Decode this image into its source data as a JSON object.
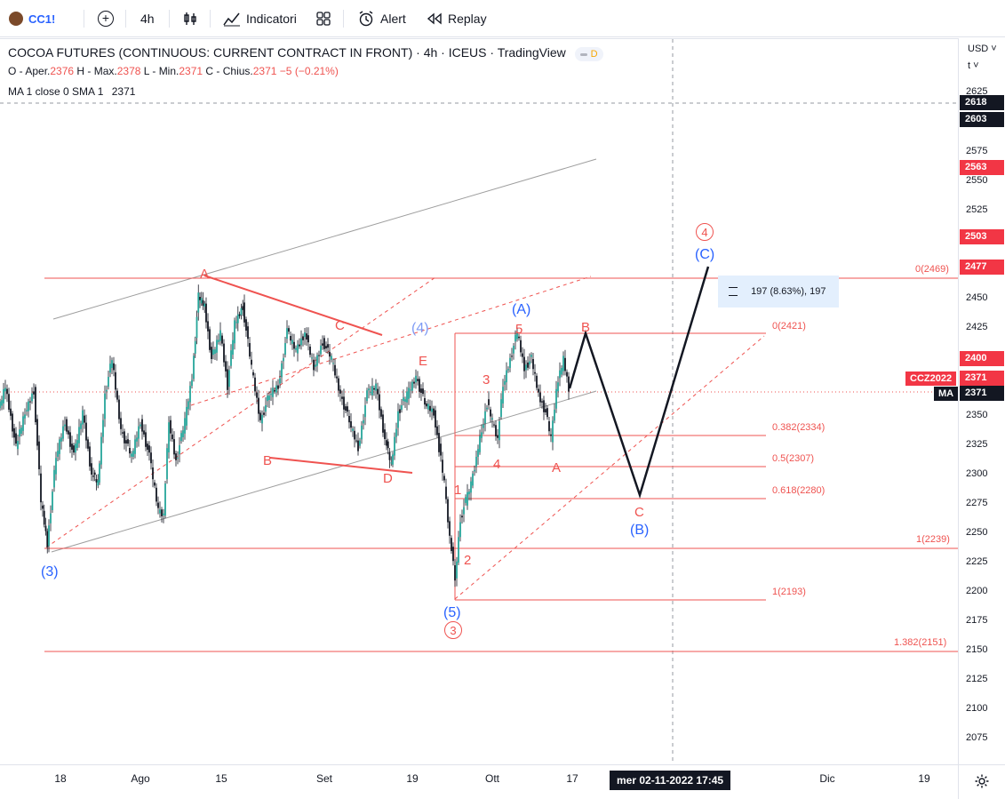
{
  "toolbar": {
    "symbol": "CC1!",
    "interval": "4h",
    "indicators_label": "Indicatori",
    "alert_label": "Alert",
    "replay_label": "Replay"
  },
  "legend": {
    "title": "COCOA FUTURES (CONTINUOUS: CURRENT CONTRACT IN FRONT) · 4h · ICEUS · TradingView",
    "badge": "D",
    "open_label": "O - Aper.",
    "open": "2376",
    "high_label": "H - Max.",
    "high": "2378",
    "low_label": "L - Min.",
    "low": "2371",
    "close_label": "C - Chius.",
    "close": "2371",
    "change": "−5 (−0.21%)",
    "ma_label": "MA 1 close 0 SMA 1",
    "ma_value": "2371"
  },
  "price_axis": {
    "currency": "USD",
    "mode": "t",
    "labels": [
      "2625",
      "2575",
      "2550",
      "2525",
      "2450",
      "2425",
      "2350",
      "2325",
      "2300",
      "2275",
      "2250",
      "2225",
      "2200",
      "2175",
      "2150",
      "2125",
      "2100",
      "2075"
    ],
    "tags": [
      {
        "text": "2618",
        "color": "#131722"
      },
      {
        "text": "2603",
        "color": "#131722"
      },
      {
        "text": "2563",
        "color": "#f23645"
      },
      {
        "text": "2503",
        "color": "#f23645"
      },
      {
        "text": "2477",
        "color": "#f23645"
      },
      {
        "text": "2400",
        "color": "#f23645"
      },
      {
        "text": "2371",
        "color": "#f23645"
      },
      {
        "text": "2371",
        "color": "#131722"
      }
    ]
  },
  "series_tags": {
    "contract": "CCZ2022",
    "ma": "MA"
  },
  "time_axis": {
    "labels": [
      "18",
      "Ago",
      "15",
      "Set",
      "19",
      "Ott",
      "17",
      "Dic",
      "19"
    ],
    "cursor": "mer 02-11-2022   17:45"
  },
  "fib_labels": [
    "0(2469)",
    "0(2421)",
    "0.382(2334)",
    "0.5(2307)",
    "0.618(2280)",
    "1(2239)",
    "1(2193)",
    "1.382(2151)"
  ],
  "measure_label": "197 (8.63%), 197",
  "wave_labels": {
    "red": [
      "A",
      "C",
      "B",
      "D",
      "E",
      "1",
      "2",
      "3",
      "4",
      "5",
      "A",
      "B",
      "C"
    ],
    "blue": [
      "(3)",
      "(4)",
      "(5)",
      "(A)",
      "(B)",
      "(C)"
    ],
    "circled": [
      "3",
      "4"
    ]
  },
  "colors": {
    "red": "#ef5350",
    "blue": "#2962ff",
    "up": "#26a69a",
    "down": "#ef5350",
    "dark": "#131722"
  }
}
